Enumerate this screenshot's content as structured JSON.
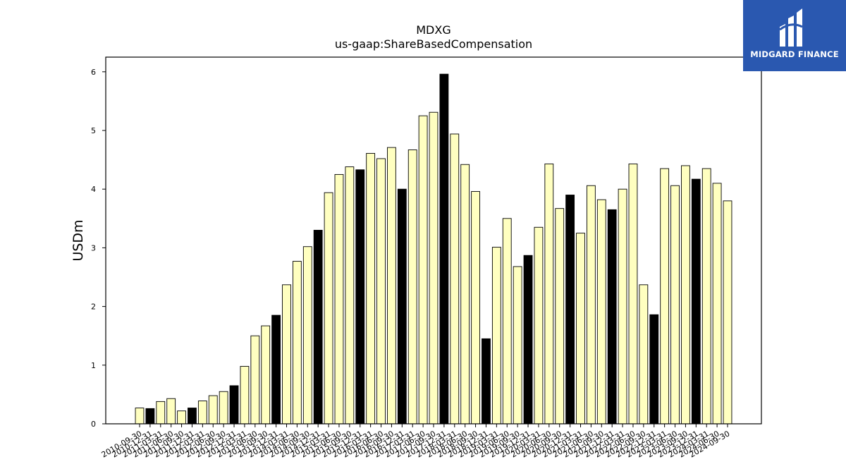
{
  "chart_data": {
    "type": "bar",
    "title": "MDXG",
    "subtitle": "us-gaap:ShareBasedCompensation",
    "ylabel": "USDm",
    "xlabel": "",
    "ylim": [
      0,
      6.25
    ],
    "yticks": [
      0,
      1,
      2,
      3,
      4,
      5,
      6
    ],
    "grid": false,
    "colors": {
      "quarter": "#ffffc0",
      "fiscal_year_end": "#000000",
      "edge": "#000000"
    },
    "bar_types": {
      "quarter": "light",
      "fiscal_year_end": "dark"
    },
    "categories": [
      "2010-09-30",
      "2010-12-31",
      "2011-03-31",
      "2011-06-30",
      "2011-09-30",
      "2011-12-31",
      "2012-03-31",
      "2012-06-30",
      "2012-09-30",
      "2012-12-31",
      "2013-03-31",
      "2013-06-30",
      "2013-09-30",
      "2013-12-31",
      "2014-03-31",
      "2014-06-30",
      "2014-09-30",
      "2014-12-31",
      "2015-03-31",
      "2015-06-30",
      "2015-09-30",
      "2015-12-31",
      "2016-03-31",
      "2016-06-30",
      "2016-09-30",
      "2016-12-31",
      "2017-03-31",
      "2017-06-30",
      "2017-09-30",
      "2017-12-31",
      "2018-03-31",
      "2018-06-30",
      "2018-09-30",
      "2018-12-31",
      "2019-03-31",
      "2019-06-30",
      "2019-09-30",
      "2019-12-31",
      "2020-03-31",
      "2020-06-30",
      "2020-09-30",
      "2020-12-31",
      "2021-03-31",
      "2021-06-30",
      "2021-09-30",
      "2021-12-31",
      "2022-03-31",
      "2022-06-30",
      "2022-09-30",
      "2022-12-31",
      "2023-03-31",
      "2023-06-30",
      "2023-09-30",
      "2023-12-31",
      "2024-03-31",
      "2024-06-30",
      "2024-09-30"
    ],
    "values": [
      0.27,
      0.26,
      0.38,
      0.43,
      0.22,
      0.27,
      0.39,
      0.48,
      0.55,
      0.65,
      0.98,
      1.5,
      1.67,
      1.85,
      2.37,
      2.77,
      3.02,
      3.3,
      3.94,
      4.25,
      4.38,
      4.33,
      4.61,
      4.52,
      4.71,
      4.0,
      4.67,
      5.25,
      5.31,
      5.96,
      4.94,
      4.42,
      3.96,
      1.45,
      3.01,
      3.5,
      2.68,
      2.87,
      3.35,
      4.43,
      3.67,
      3.9,
      3.25,
      4.06,
      3.82,
      3.65,
      4.0,
      4.43,
      2.37,
      1.86,
      4.35,
      4.06,
      4.4,
      4.17,
      4.35,
      4.1,
      3.8
    ],
    "fiscal_year_end": [
      false,
      true,
      false,
      false,
      false,
      true,
      false,
      false,
      false,
      true,
      false,
      false,
      false,
      true,
      false,
      false,
      false,
      true,
      false,
      false,
      false,
      true,
      false,
      false,
      false,
      true,
      false,
      false,
      false,
      true,
      false,
      false,
      false,
      true,
      false,
      false,
      false,
      true,
      false,
      false,
      false,
      true,
      false,
      false,
      false,
      true,
      false,
      false,
      false,
      true,
      false,
      false,
      false,
      true,
      false,
      false,
      false
    ]
  },
  "logo": {
    "text": "MIDGARD FINANCE",
    "background": "#2a58b0",
    "foreground": "#ffffff"
  }
}
